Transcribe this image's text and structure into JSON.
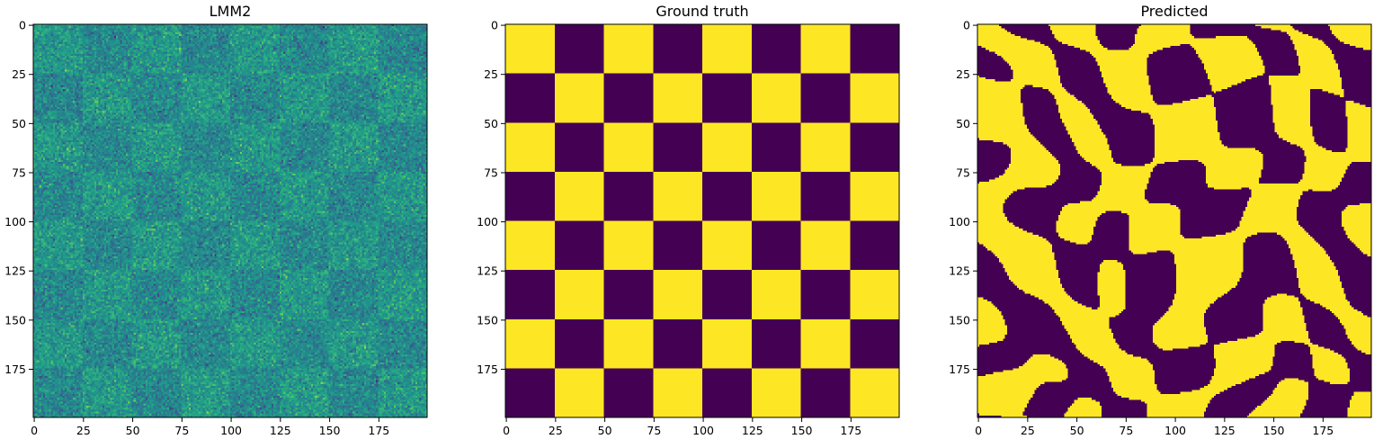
{
  "chart_data": [
    {
      "type": "heatmap",
      "title": "LMM2",
      "render": "noisy-checkerboard",
      "grid_size": 200,
      "cell_size": 25,
      "colormap": "viridis",
      "x_ticks": [
        "0",
        "25",
        "50",
        "75",
        "100",
        "125",
        "150",
        "175"
      ],
      "y_ticks": [
        "0",
        "25",
        "50",
        "75",
        "100",
        "125",
        "150",
        "175"
      ]
    },
    {
      "type": "heatmap",
      "title": "Ground truth",
      "render": "checkerboard",
      "grid_size": 200,
      "cell_size": 25,
      "colors": [
        "#fde725",
        "#440154"
      ],
      "x_ticks": [
        "0",
        "25",
        "50",
        "75",
        "100",
        "125",
        "150",
        "175"
      ],
      "y_ticks": [
        "0",
        "25",
        "50",
        "75",
        "100",
        "125",
        "150",
        "175"
      ]
    },
    {
      "type": "heatmap",
      "title": "Predicted",
      "render": "blob-prediction",
      "grid_size": 200,
      "cell_size": 25,
      "colors": [
        "#fde725",
        "#440154"
      ],
      "x_ticks": [
        "0",
        "25",
        "50",
        "75",
        "100",
        "125",
        "150",
        "175"
      ],
      "y_ticks": [
        "0",
        "25",
        "50",
        "75",
        "100",
        "125",
        "150",
        "175"
      ]
    }
  ]
}
